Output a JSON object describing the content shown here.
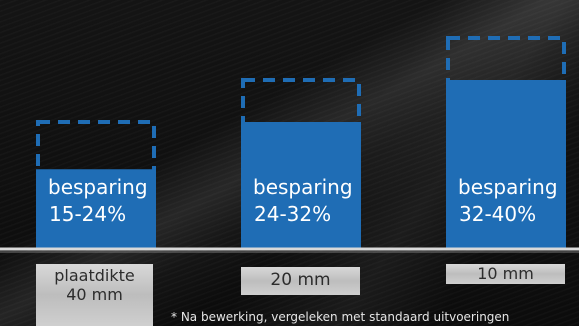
{
  "chart_data": {
    "type": "bar",
    "categories": [
      "plaatdikte 40 mm",
      "20 mm",
      "10 mm"
    ],
    "series": [
      {
        "values": [
          15,
          24,
          32
        ]
      },
      {
        "values": [
          24,
          32,
          40
        ]
      }
    ],
    "bars": [
      {
        "line1": "besparing",
        "line2": "15-24%",
        "min": 15,
        "max": 24
      },
      {
        "line1": "besparing",
        "line2": "24-32%",
        "min": 24,
        "max": 32
      },
      {
        "line1": "besparing",
        "line2": "32-40%",
        "min": 32,
        "max": 40
      }
    ],
    "tags": [
      {
        "line1": "plaatdikte",
        "line2": "40 mm"
      },
      {
        "line1": "20 mm",
        "line2": ""
      },
      {
        "line1": "10 mm",
        "line2": ""
      }
    ],
    "footnote": "* Na bewerking, vergeleken met standaard uitvoeringen",
    "colors": {
      "bar": "#1f6db5",
      "dashed_outline": "#1f6db5",
      "baseline": "#d9d9d9",
      "tag_box": "#c8c8c8"
    }
  }
}
